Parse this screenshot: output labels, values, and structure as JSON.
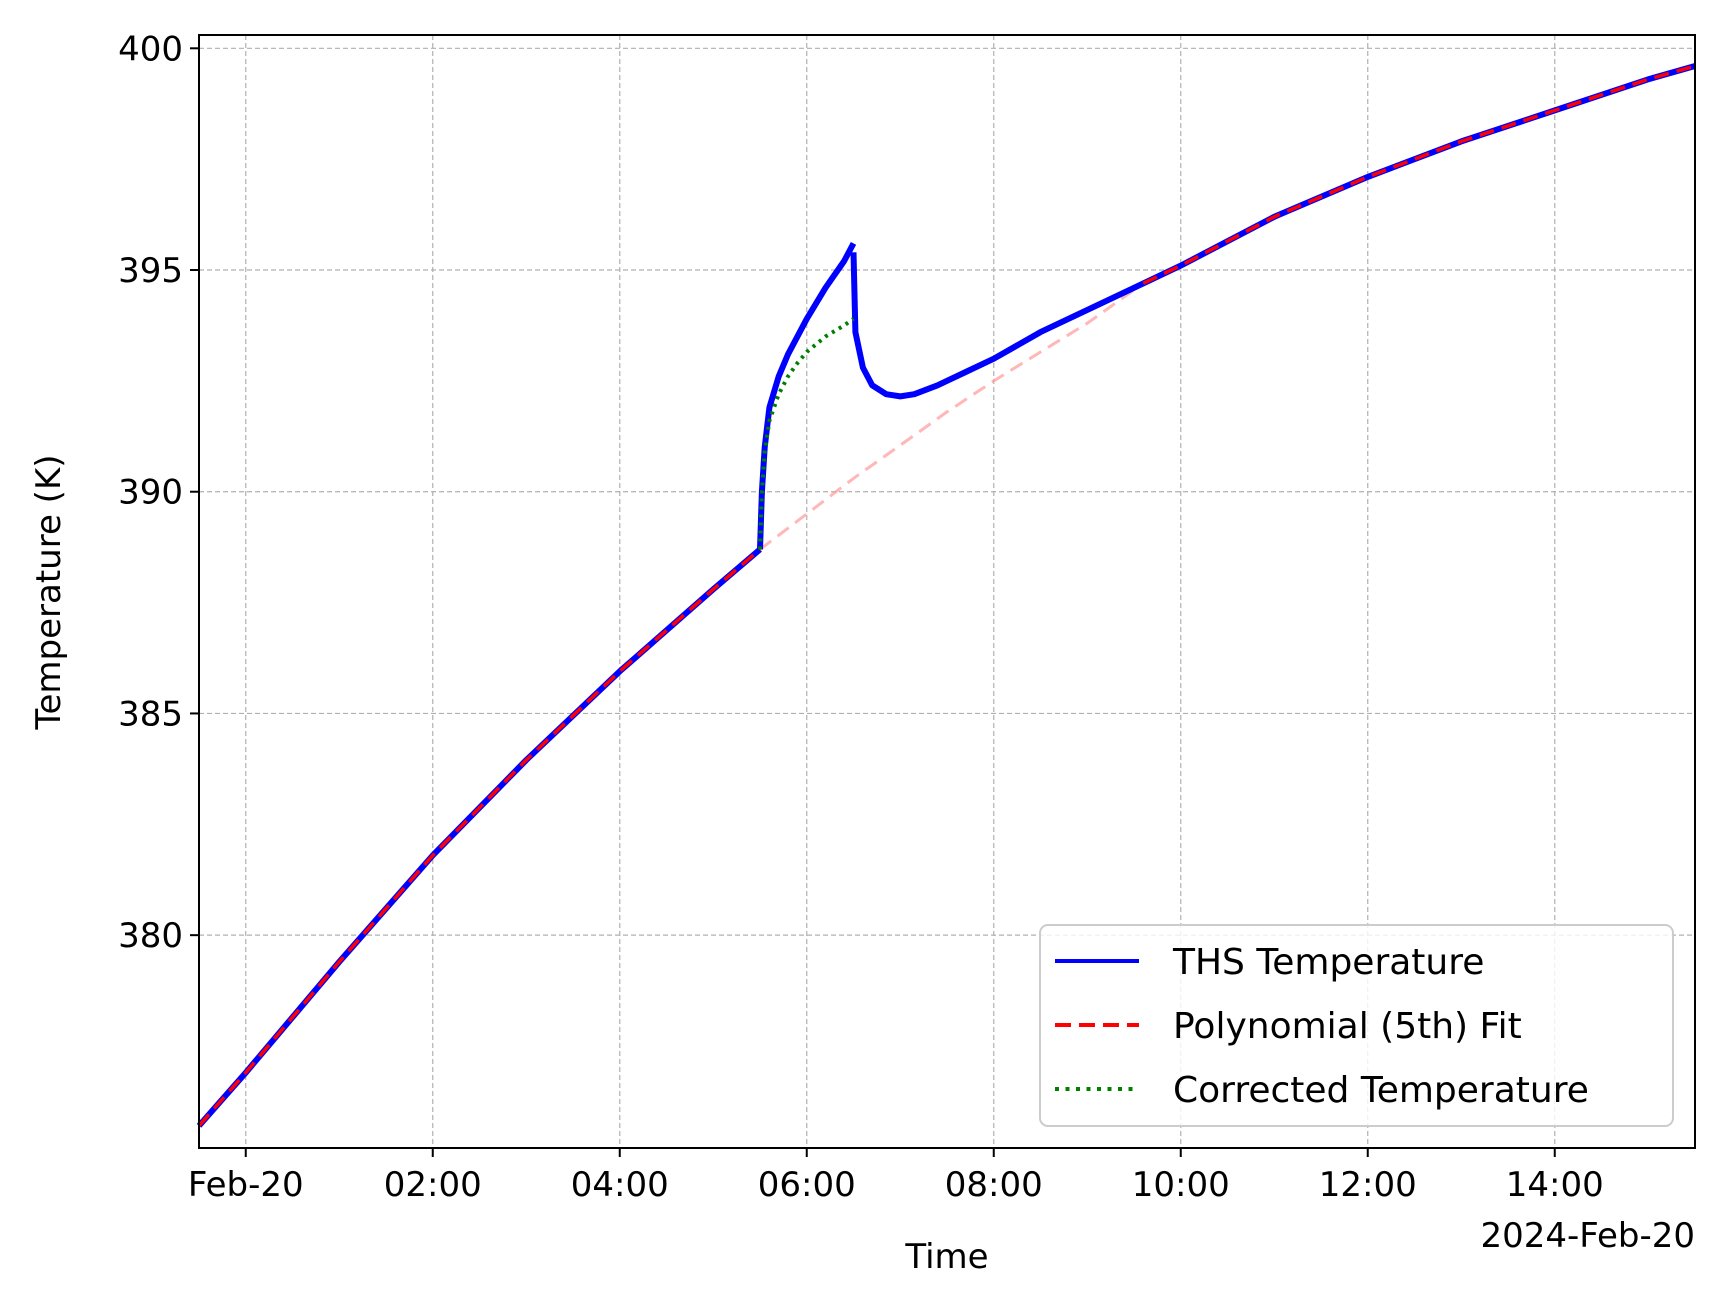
{
  "chart_data": {
    "type": "line",
    "title": "",
    "xlabel": "Time",
    "ylabel": "Temperature (K)",
    "x_offset_label": "2024-Feb-20",
    "x_unit": "hours since 2024-02-20 00:00",
    "xlim": [
      -0.5,
      15.5
    ],
    "ylim": [
      375.2,
      400.3
    ],
    "grid": true,
    "x_ticks": [
      {
        "value": 0,
        "label": "Feb-20"
      },
      {
        "value": 2,
        "label": "02:00"
      },
      {
        "value": 4,
        "label": "04:00"
      },
      {
        "value": 6,
        "label": "06:00"
      },
      {
        "value": 8,
        "label": "08:00"
      },
      {
        "value": 10,
        "label": "10:00"
      },
      {
        "value": 12,
        "label": "12:00"
      },
      {
        "value": 14,
        "label": "14:00"
      }
    ],
    "y_ticks": [
      {
        "value": 380,
        "label": "380"
      },
      {
        "value": 385,
        "label": "385"
      },
      {
        "value": 390,
        "label": "390"
      },
      {
        "value": 395,
        "label": "395"
      },
      {
        "value": 400,
        "label": "400"
      }
    ],
    "legend_position": "lower-right",
    "series": [
      {
        "name": "THS Temperature",
        "color": "#0000ff",
        "style": "solid",
        "segments": [
          {
            "x": [
              -0.5,
              0,
              1,
              2,
              3,
              4,
              5,
              5.5
            ],
            "y": [
              375.7,
              376.9,
              379.4,
              381.8,
              383.95,
              385.95,
              387.8,
              388.7
            ]
          },
          {
            "x": [
              5.5,
              5.52,
              5.55,
              5.6,
              5.7,
              5.8,
              6,
              6.2,
              6.4,
              6.5
            ],
            "y": [
              388.7,
              390,
              391,
              391.9,
              392.6,
              393.1,
              393.9,
              394.6,
              395.2,
              395.6
            ]
          },
          {
            "x": [
              6.5,
              6.52,
              6.6,
              6.7,
              6.85,
              7,
              7.15,
              7.4,
              7.7,
              8,
              8.5,
              9,
              9.5,
              10,
              11,
              12,
              13,
              14,
              15,
              15.5
            ],
            "y": [
              395.4,
              393.6,
              392.8,
              392.4,
              392.2,
              392.15,
              392.2,
              392.4,
              392.7,
              393,
              393.6,
              394.1,
              394.6,
              395.1,
              396.2,
              397.1,
              397.9,
              398.6,
              399.3,
              399.6
            ]
          }
        ]
      },
      {
        "name": "Polynomial (5th) Fit",
        "color": "#ff0000",
        "style": "dashed",
        "segments": [
          {
            "x": [
              -0.5,
              0,
              1,
              2,
              3,
              4,
              5,
              5.5
            ],
            "y": [
              375.7,
              376.9,
              379.4,
              381.8,
              383.95,
              385.95,
              387.8,
              388.7
            ]
          },
          {
            "x": [
              9.6,
              10,
              11,
              12,
              13,
              14,
              15,
              15.5
            ],
            "y": [
              394.7,
              395.1,
              396.2,
              397.1,
              397.9,
              398.6,
              399.3,
              399.6
            ]
          }
        ],
        "faded_segment": {
          "x": [
            5.5,
            6,
            6.5,
            7,
            7.5,
            8,
            8.5,
            9,
            9.6
          ],
          "y": [
            388.7,
            389.5,
            390.3,
            391.05,
            391.8,
            392.5,
            393.15,
            393.8,
            394.7
          ]
        }
      },
      {
        "name": "Corrected Temperature",
        "color": "#008000",
        "style": "dotted",
        "segments": [
          {
            "x": [
              5.5,
              5.52,
              5.55,
              5.6,
              5.7,
              5.8,
              5.9,
              6,
              6.2,
              6.4,
              6.5
            ],
            "y": [
              388.7,
              390,
              390.9,
              391.6,
              392.2,
              392.6,
              392.9,
              393.15,
              393.5,
              393.75,
              393.9
            ]
          }
        ]
      }
    ]
  }
}
